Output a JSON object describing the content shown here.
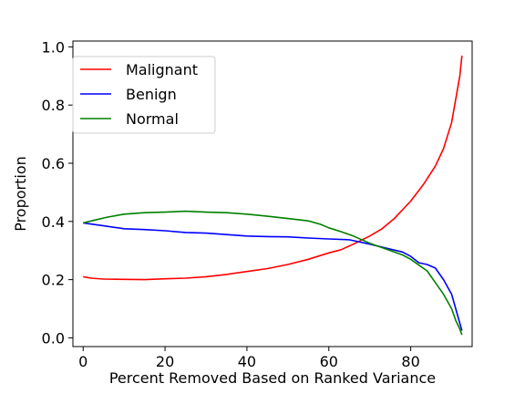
{
  "chart_data": {
    "type": "line",
    "xlabel": "Percent Removed Based on Ranked Variance",
    "ylabel": "Proportion",
    "xlim": [
      -2.5,
      95
    ],
    "ylim": [
      -0.03,
      1.02
    ],
    "xticks": [
      0,
      20,
      40,
      60,
      80
    ],
    "yticks": [
      0.0,
      0.2,
      0.4,
      0.6,
      0.8,
      1.0
    ],
    "xtick_labels": [
      "0",
      "20",
      "40",
      "60",
      "80"
    ],
    "ytick_labels": [
      "0.0",
      "0.2",
      "0.4",
      "0.6",
      "0.8",
      "1.0"
    ],
    "grid": false,
    "legend_position": "top-left",
    "series": [
      {
        "name": "Malignant",
        "color": "#ff0000",
        "points": [
          [
            0,
            0.21
          ],
          [
            2,
            0.205
          ],
          [
            5,
            0.202
          ],
          [
            10,
            0.201
          ],
          [
            15,
            0.2
          ],
          [
            20,
            0.203
          ],
          [
            25,
            0.205
          ],
          [
            30,
            0.21
          ],
          [
            35,
            0.218
          ],
          [
            40,
            0.228
          ],
          [
            45,
            0.238
          ],
          [
            50,
            0.252
          ],
          [
            55,
            0.27
          ],
          [
            60,
            0.292
          ],
          [
            63,
            0.303
          ],
          [
            66,
            0.322
          ],
          [
            70,
            0.35
          ],
          [
            73,
            0.375
          ],
          [
            76,
            0.41
          ],
          [
            80,
            0.47
          ],
          [
            83,
            0.525
          ],
          [
            86,
            0.59
          ],
          [
            88,
            0.65
          ],
          [
            90,
            0.74
          ],
          [
            91,
            0.82
          ],
          [
            92,
            0.9
          ],
          [
            92.5,
            0.97
          ]
        ]
      },
      {
        "name": "Benign",
        "color": "#0000ff",
        "points": [
          [
            0,
            0.395
          ],
          [
            5,
            0.385
          ],
          [
            10,
            0.375
          ],
          [
            15,
            0.372
          ],
          [
            20,
            0.368
          ],
          [
            25,
            0.362
          ],
          [
            30,
            0.36
          ],
          [
            35,
            0.355
          ],
          [
            40,
            0.35
          ],
          [
            45,
            0.348
          ],
          [
            50,
            0.347
          ],
          [
            55,
            0.343
          ],
          [
            60,
            0.34
          ],
          [
            65,
            0.337
          ],
          [
            70,
            0.322
          ],
          [
            75,
            0.305
          ],
          [
            78,
            0.295
          ],
          [
            80,
            0.28
          ],
          [
            82,
            0.258
          ],
          [
            84,
            0.252
          ],
          [
            86,
            0.24
          ],
          [
            88,
            0.2
          ],
          [
            90,
            0.15
          ],
          [
            91,
            0.1
          ],
          [
            92,
            0.05
          ],
          [
            92.5,
            0.025
          ]
        ]
      },
      {
        "name": "Normal",
        "color": "#008000",
        "points": [
          [
            0,
            0.395
          ],
          [
            3,
            0.405
          ],
          [
            6,
            0.415
          ],
          [
            10,
            0.425
          ],
          [
            15,
            0.43
          ],
          [
            20,
            0.432
          ],
          [
            25,
            0.435
          ],
          [
            30,
            0.432
          ],
          [
            35,
            0.43
          ],
          [
            40,
            0.425
          ],
          [
            45,
            0.418
          ],
          [
            50,
            0.41
          ],
          [
            55,
            0.402
          ],
          [
            58,
            0.39
          ],
          [
            60,
            0.378
          ],
          [
            63,
            0.365
          ],
          [
            66,
            0.35
          ],
          [
            70,
            0.325
          ],
          [
            74,
            0.305
          ],
          [
            78,
            0.285
          ],
          [
            80,
            0.27
          ],
          [
            82,
            0.25
          ],
          [
            84,
            0.23
          ],
          [
            86,
            0.19
          ],
          [
            88,
            0.15
          ],
          [
            90,
            0.1
          ],
          [
            91,
            0.06
          ],
          [
            92,
            0.03
          ],
          [
            92.5,
            0.01
          ]
        ]
      }
    ]
  }
}
